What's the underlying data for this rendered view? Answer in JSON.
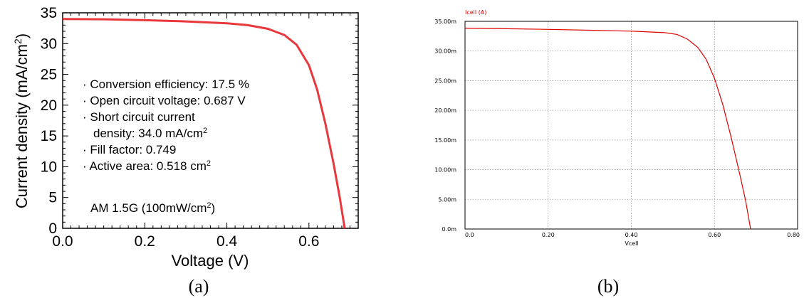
{
  "chart_data": [
    {
      "type": "line",
      "panel_label": "(a)",
      "xlabel": "Voltage (V)",
      "ylabel": "Current density (mA/cm",
      "ylabel_sup": "2",
      "ylabel_end": ")",
      "xlim": [
        0.0,
        0.72
      ],
      "ylim": [
        0,
        35
      ],
      "xticks": [
        {
          "v": 0.0,
          "label": "0.0"
        },
        {
          "v": 0.2,
          "label": "0.2"
        },
        {
          "v": 0.4,
          "label": "0.4"
        },
        {
          "v": 0.6,
          "label": "0.6"
        }
      ],
      "yticks": [
        {
          "v": 0,
          "label": "0"
        },
        {
          "v": 5,
          "label": "5"
        },
        {
          "v": 10,
          "label": "10"
        },
        {
          "v": 15,
          "label": "15"
        },
        {
          "v": 20,
          "label": "20"
        },
        {
          "v": 25,
          "label": "25"
        },
        {
          "v": 30,
          "label": "30"
        },
        {
          "v": 35,
          "label": "35"
        }
      ],
      "annotations": [
        {
          "text": "· Conversion efficiency: 17.5 %"
        },
        {
          "text": "· Open circuit voltage: 0.687 V"
        },
        {
          "text": "· Short circuit current"
        },
        {
          "text": "density: 34.0 mA/cm",
          "sup": "2"
        },
        {
          "text": "· Fill factor: 0.749"
        },
        {
          "text": "· Active area: 0.518 cm",
          "sup": "2"
        }
      ],
      "condition": {
        "text": "AM 1.5G (100mW/cm",
        "sup": "2",
        "end": ")"
      },
      "series": [
        {
          "color": "#e8383d",
          "points": [
            [
              0.0,
              34.0
            ],
            [
              0.1,
              33.95
            ],
            [
              0.2,
              33.8
            ],
            [
              0.3,
              33.6
            ],
            [
              0.4,
              33.3
            ],
            [
              0.45,
              33.0
            ],
            [
              0.5,
              32.4
            ],
            [
              0.54,
              31.4
            ],
            [
              0.57,
              29.8
            ],
            [
              0.6,
              26.5
            ],
            [
              0.62,
              22.5
            ],
            [
              0.64,
              17.0
            ],
            [
              0.66,
              10.5
            ],
            [
              0.675,
              5.0
            ],
            [
              0.687,
              0.0
            ]
          ]
        }
      ]
    },
    {
      "type": "line",
      "panel_label": "(b)",
      "title": "Icell (A)",
      "xlabel": "Vcell",
      "xlim": [
        0.0,
        0.8
      ],
      "ylim": [
        0.0,
        35.0
      ],
      "xticks": [
        {
          "v": 0.0,
          "label": "0.0"
        },
        {
          "v": 0.2,
          "label": "0.20"
        },
        {
          "v": 0.4,
          "label": "0.40"
        },
        {
          "v": 0.6,
          "label": "0.60"
        },
        {
          "v": 0.8,
          "label": "0.80"
        }
      ],
      "yticks": [
        {
          "v": 0.0,
          "label": "0.0m"
        },
        {
          "v": 5.0,
          "label": "5.00m"
        },
        {
          "v": 10.0,
          "label": "10.00m"
        },
        {
          "v": 15.0,
          "label": "15.00m"
        },
        {
          "v": 20.0,
          "label": "20.00m"
        },
        {
          "v": 25.0,
          "label": "25.00m"
        },
        {
          "v": 30.0,
          "label": "30.00m"
        },
        {
          "v": 35.0,
          "label": "35.00m"
        }
      ],
      "grid": true,
      "series": [
        {
          "color": "#e00000",
          "points": [
            [
              0.0,
              33.85
            ],
            [
              0.1,
              33.75
            ],
            [
              0.2,
              33.65
            ],
            [
              0.3,
              33.5
            ],
            [
              0.4,
              33.35
            ],
            [
              0.48,
              33.1
            ],
            [
              0.51,
              32.8
            ],
            [
              0.535,
              32.0
            ],
            [
              0.56,
              30.6
            ],
            [
              0.58,
              28.6
            ],
            [
              0.6,
              25.4
            ],
            [
              0.62,
              21.0
            ],
            [
              0.64,
              15.5
            ],
            [
              0.66,
              9.5
            ],
            [
              0.675,
              4.8
            ],
            [
              0.687,
              0.0
            ]
          ]
        }
      ]
    }
  ]
}
